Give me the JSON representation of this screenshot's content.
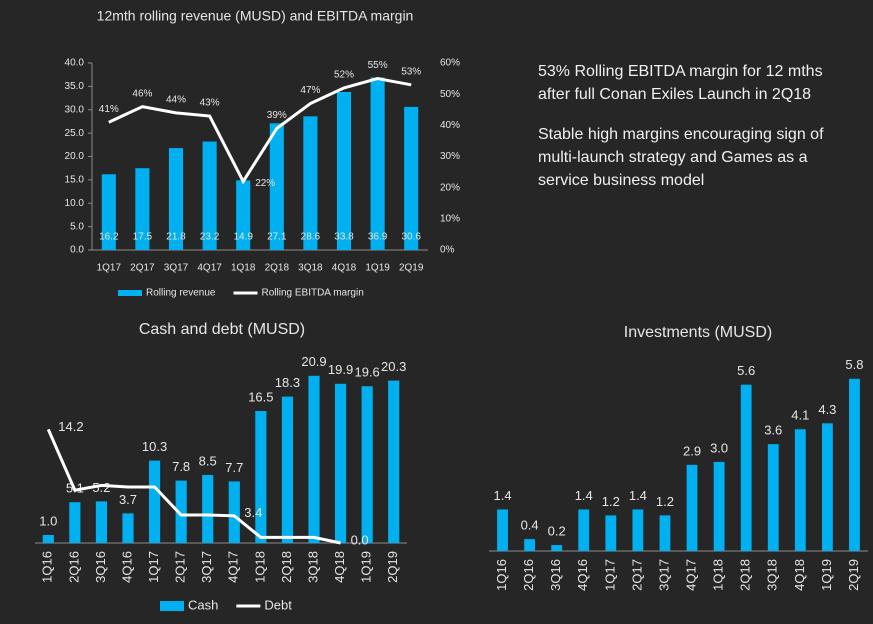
{
  "chart_data": [
    {
      "type": "bar",
      "title": "12mth rolling revenue (MUSD) and EBITDA margin",
      "categories": [
        "1Q17",
        "2Q17",
        "3Q17",
        "4Q17",
        "1Q18",
        "2Q18",
        "3Q18",
        "4Q18",
        "1Q19",
        "2Q19"
      ],
      "series": [
        {
          "name": "Rolling revenue",
          "type": "bar",
          "color": "#00b0f0",
          "values": [
            16.2,
            17.5,
            21.8,
            23.2,
            14.9,
            27.1,
            28.6,
            33.8,
            36.9,
            30.6
          ]
        },
        {
          "name": "Rolling EBITDA margin",
          "type": "line",
          "axis": "y2",
          "color": "#ffffff",
          "values": [
            41,
            46,
            44,
            43,
            22,
            39,
            47,
            52,
            55,
            53
          ],
          "value_labels": [
            "41%",
            "46%",
            "44%",
            "43%",
            "22%",
            "39%",
            "47%",
            "52%",
            "55%",
            "53%"
          ]
        }
      ],
      "ylim": [
        0,
        40
      ],
      "yticks": [
        {
          "value": 0,
          "label": "0.0"
        },
        {
          "value": 5,
          "label": "5.0"
        },
        {
          "value": 10,
          "label": "10.0"
        },
        {
          "value": 15,
          "label": "15.0"
        },
        {
          "value": 20,
          "label": "20.0"
        },
        {
          "value": 25,
          "label": "25.0"
        },
        {
          "value": 30,
          "label": "30.0"
        },
        {
          "value": 35,
          "label": "35.0"
        },
        {
          "value": 40,
          "label": "40.0"
        }
      ],
      "y2lim": [
        0,
        60
      ],
      "y2ticks": [
        {
          "value": 0,
          "label": "0%"
        },
        {
          "value": 10,
          "label": "10%"
        },
        {
          "value": 20,
          "label": "20%"
        },
        {
          "value": 30,
          "label": "30%"
        },
        {
          "value": 40,
          "label": "40%"
        },
        {
          "value": 50,
          "label": "50%"
        },
        {
          "value": 60,
          "label": "60%"
        }
      ],
      "legend": "bottom"
    },
    {
      "type": "bar",
      "title": "Cash and debt (MUSD)",
      "categories": [
        "1Q16",
        "2Q16",
        "3Q16",
        "4Q16",
        "1Q17",
        "2Q17",
        "3Q17",
        "4Q17",
        "1Q18",
        "2Q18",
        "3Q18",
        "4Q18",
        "1Q19",
        "2Q19"
      ],
      "series": [
        {
          "name": "Cash",
          "type": "bar",
          "color": "#00b0f0",
          "values": [
            1.0,
            5.1,
            5.2,
            3.7,
            10.3,
            7.8,
            8.5,
            7.7,
            16.5,
            18.3,
            20.9,
            19.9,
            19.6,
            20.3
          ],
          "value_labels": [
            "1.0",
            "5.1",
            "5.2",
            "3.7",
            "10.3",
            "7.8",
            "8.5",
            "7.7",
            "16.5",
            "18.3",
            "20.9",
            "19.9",
            "19.6",
            "20.3"
          ]
        },
        {
          "name": "Debt",
          "type": "line",
          "color": "#ffffff",
          "values": [
            14.2,
            6.6,
            7.2,
            7.0,
            7.0,
            3.5,
            3.5,
            3.4,
            0.7,
            0.7,
            0.7,
            0.0,
            null,
            null
          ],
          "value_labels": [
            "14.2",
            null,
            null,
            null,
            null,
            null,
            null,
            "3.4",
            null,
            null,
            null,
            "0.0",
            null,
            null
          ]
        }
      ],
      "ylim": [
        0,
        22
      ],
      "legend": "bottom"
    },
    {
      "type": "bar",
      "title": "Investments (MUSD)",
      "categories": [
        "1Q16",
        "2Q16",
        "3Q16",
        "4Q16",
        "1Q17",
        "2Q17",
        "3Q17",
        "4Q17",
        "1Q18",
        "2Q18",
        "3Q18",
        "4Q18",
        "1Q19",
        "2Q19"
      ],
      "series": [
        {
          "type": "bar",
          "color": "#00b0f0",
          "values": [
            1.4,
            0.4,
            0.2,
            1.4,
            1.2,
            1.4,
            1.2,
            2.9,
            3.0,
            5.6,
            3.6,
            4.1,
            4.3,
            5.8
          ],
          "value_labels": [
            "1.4",
            "0.4",
            "0.2",
            "1.4",
            "1.2",
            "1.4",
            "1.2",
            "2.9",
            "3.0",
            "5.6",
            "3.6",
            "4.1",
            "4.3",
            "5.8"
          ]
        }
      ],
      "ylim": [
        0,
        6.5
      ]
    }
  ],
  "text": [
    "53% Rolling EBITDA margin for 12 mths after full Conan Exiles Launch in 2Q18",
    "Stable high margins encouraging sign of multi-launch strategy and Games as a service business model"
  ]
}
